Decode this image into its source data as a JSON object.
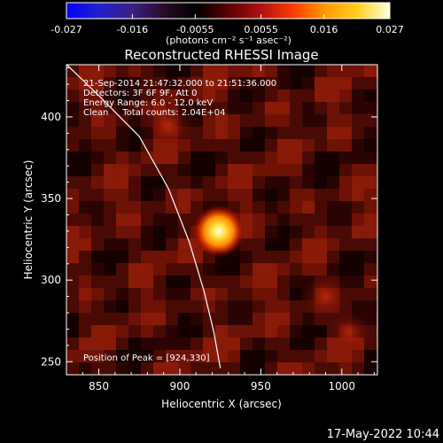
{
  "colorbar": {
    "tick_labels": [
      "-0.027",
      "-0.016",
      "-0.0055",
      "0.0055",
      "0.016",
      "0.027"
    ],
    "tick_values": [
      -0.027,
      -0.016,
      -0.0055,
      0.0055,
      0.016,
      0.027
    ],
    "range": [
      -0.027,
      0.027
    ],
    "units_label": "(photons cm⁻² s⁻¹ asec⁻²)",
    "colormap_stops": [
      "#0000ff",
      "#2222cc",
      "#3a1f8a",
      "#2a0b2a",
      "#000000",
      "#5a0000",
      "#b01010",
      "#ff3a00",
      "#ff9a00",
      "#ffd020",
      "#ffffe0"
    ]
  },
  "chart_data": {
    "type": "heatmap",
    "title": "Reconstructed RHESSI Image",
    "xlabel": "Heliocentric X (arcsec)",
    "ylabel": "Heliocentric Y (arcsec)",
    "xlim": [
      830,
      1022
    ],
    "ylim": [
      242,
      432
    ],
    "x_ticks": [
      850,
      900,
      950,
      1000
    ],
    "y_ticks": [
      250,
      300,
      350,
      400
    ],
    "x_tick_labels": [
      "850",
      "900",
      "950",
      "1000"
    ],
    "y_tick_labels": [
      "250",
      "300",
      "350",
      "400"
    ],
    "peak": {
      "x": 924,
      "y": 330
    },
    "info_lines": [
      "21-Sep-2014 21:47:32.000 to 21:51:36.000",
      "Detectors: 3F 6F 9F, Att 0",
      "Energy Range: 6.0 - 12.0 keV",
      "Clean     Total counts: 2.04E+04"
    ],
    "peak_label": "Position of Peak = [924,330]",
    "limb_curve": [
      [
        826,
        436
      ],
      [
        850,
        413
      ],
      [
        875,
        388
      ],
      [
        893,
        356
      ],
      [
        906,
        323
      ],
      [
        915,
        293
      ],
      [
        921,
        268
      ],
      [
        925,
        246
      ]
    ],
    "secondary_sources": [
      {
        "x": 893,
        "y": 395,
        "strength": 0.22
      },
      {
        "x": 990,
        "y": 290,
        "strength": 0.18
      },
      {
        "x": 1005,
        "y": 268,
        "strength": 0.14
      }
    ],
    "grid": false
  },
  "timestamp": "17-May-2022 10:44"
}
